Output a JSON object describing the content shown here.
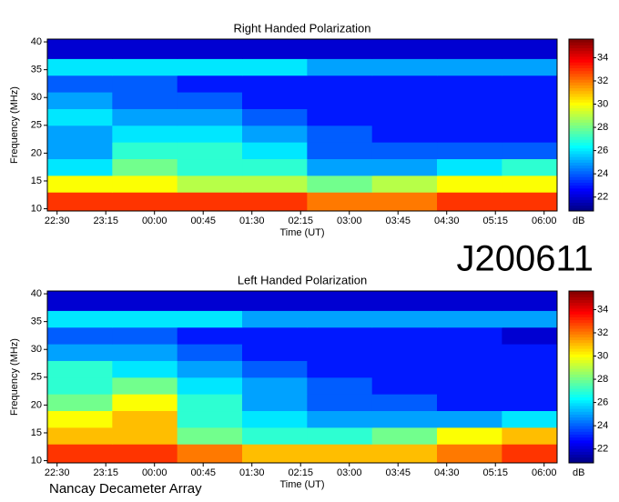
{
  "chart_data": [
    {
      "type": "heatmap",
      "title": "Right Handed Polarization",
      "x_label": "Time (UT)",
      "y_label": "Frequency (MHz)",
      "colormap": "jet",
      "colorbar_label": "dB",
      "clim": [
        20.8,
        35.6
      ],
      "cticks": [
        22,
        24,
        26,
        28,
        30,
        32,
        34
      ],
      "xlim": [
        22.35,
        30.2
      ],
      "ylim": [
        9.6,
        40.5
      ],
      "xticks": [
        {
          "value": 22.5,
          "label": "22:30"
        },
        {
          "value": 23.25,
          "label": "23:15"
        },
        {
          "value": 24,
          "label": "00:00"
        },
        {
          "value": 24.75,
          "label": "00:45"
        },
        {
          "value": 25.5,
          "label": "01:30"
        },
        {
          "value": 26.25,
          "label": "02:15"
        },
        {
          "value": 27,
          "label": "03:00"
        },
        {
          "value": 27.75,
          "label": "03:45"
        },
        {
          "value": 28.5,
          "label": "04:30"
        },
        {
          "value": 29.25,
          "label": "05:15"
        },
        {
          "value": 30,
          "label": "06:00"
        }
      ],
      "yticks": [
        10,
        15,
        20,
        25,
        30,
        35,
        40
      ],
      "xbins": [
        22.35,
        23.35,
        24.35,
        25.35,
        26.35,
        27.35,
        28.35,
        29.35,
        30.2
      ],
      "ybins": [
        9.6,
        13,
        16,
        19,
        22,
        25,
        28,
        31,
        34,
        37,
        40.5
      ],
      "z": [
        [
          33,
          33,
          33,
          33,
          32,
          32,
          33,
          33
        ],
        [
          30,
          30,
          29,
          29,
          28,
          29,
          30,
          30
        ],
        [
          26,
          28,
          27,
          27,
          25,
          25,
          26,
          27
        ],
        [
          25,
          27,
          27,
          26,
          24,
          24,
          24,
          24
        ],
        [
          25,
          26,
          26,
          25,
          24,
          23,
          23,
          23
        ],
        [
          26,
          25,
          25,
          24,
          23,
          23,
          23,
          23
        ],
        [
          25,
          24,
          24,
          23,
          23,
          23,
          23,
          23
        ],
        [
          24,
          24,
          23,
          23,
          23,
          23,
          23,
          23
        ],
        [
          26,
          26,
          26,
          26,
          25,
          25,
          25,
          25
        ],
        [
          22,
          22,
          22,
          22,
          22,
          22,
          22,
          22
        ]
      ]
    },
    {
      "type": "heatmap",
      "title": "Left Handed Polarization",
      "x_label": "Time (UT)",
      "y_label": "Frequency (MHz)",
      "colormap": "jet",
      "colorbar_label": "dB",
      "clim": [
        20.8,
        35.6
      ],
      "cticks": [
        22,
        24,
        26,
        28,
        30,
        32,
        34
      ],
      "xlim": [
        22.35,
        30.2
      ],
      "ylim": [
        9.6,
        40.5
      ],
      "xticks": [
        {
          "value": 22.5,
          "label": "22:30"
        },
        {
          "value": 23.25,
          "label": "23:15"
        },
        {
          "value": 24,
          "label": "00:00"
        },
        {
          "value": 24.75,
          "label": "00:45"
        },
        {
          "value": 25.5,
          "label": "01:30"
        },
        {
          "value": 26.25,
          "label": "02:15"
        },
        {
          "value": 27,
          "label": "03:00"
        },
        {
          "value": 27.75,
          "label": "03:45"
        },
        {
          "value": 28.5,
          "label": "04:30"
        },
        {
          "value": 29.25,
          "label": "05:15"
        },
        {
          "value": 30,
          "label": "06:00"
        }
      ],
      "yticks": [
        10,
        15,
        20,
        25,
        30,
        35,
        40
      ],
      "xbins": [
        22.35,
        23.35,
        24.35,
        25.35,
        26.35,
        27.35,
        28.35,
        29.35,
        30.2
      ],
      "ybins": [
        9.6,
        13,
        16,
        19,
        22,
        25,
        28,
        31,
        34,
        37,
        40.5
      ],
      "z": [
        [
          33,
          33,
          32,
          31,
          31,
          31,
          32,
          33
        ],
        [
          31,
          31,
          28,
          27,
          27,
          28,
          30,
          31
        ],
        [
          30,
          31,
          27,
          26,
          25,
          25,
          25,
          26
        ],
        [
          28,
          30,
          27,
          25,
          24,
          24,
          23,
          23
        ],
        [
          27,
          28,
          26,
          25,
          24,
          23,
          23,
          23
        ],
        [
          27,
          26,
          25,
          24,
          23,
          23,
          23,
          23
        ],
        [
          25,
          25,
          24,
          23,
          23,
          23,
          23,
          23
        ],
        [
          24,
          24,
          23,
          23,
          23,
          23,
          23,
          22
        ],
        [
          26,
          26,
          26,
          25,
          25,
          25,
          25,
          25
        ],
        [
          22,
          22,
          22,
          22,
          22,
          22,
          22,
          22
        ]
      ]
    }
  ],
  "event_label": "J200611",
  "footer": "Nancay Decameter Array"
}
